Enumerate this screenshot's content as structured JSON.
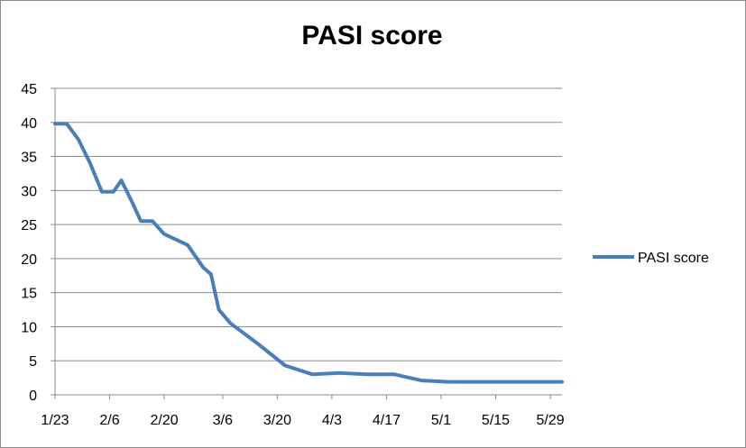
{
  "chart_data": {
    "type": "line",
    "title": "PASI score",
    "xlabel": "",
    "ylabel": "",
    "x_tick_labels": [
      "1/23",
      "2/6",
      "2/20",
      "3/6",
      "3/20",
      "4/3",
      "4/17",
      "5/1",
      "5/15",
      "5/29"
    ],
    "x_start": "1/23",
    "x_end": "6/1",
    "ylim": [
      0,
      45
    ],
    "y_ticks": [
      0,
      5,
      10,
      15,
      20,
      25,
      30,
      35,
      40,
      45
    ],
    "grid": true,
    "legend_position": "right",
    "series": [
      {
        "name": "PASI score",
        "color": "#4a7ebb",
        "x": [
          "1/23",
          "1/26",
          "1/29",
          "2/1",
          "2/4",
          "2/7",
          "2/9",
          "2/12",
          "2/14",
          "2/17",
          "2/20",
          "2/23",
          "2/26",
          "3/1",
          "3/3",
          "3/5",
          "3/8",
          "3/15",
          "3/22",
          "3/29",
          "4/5",
          "4/12",
          "4/19",
          "4/26",
          "5/3",
          "5/10",
          "5/17",
          "5/24",
          "6/1"
        ],
        "values": [
          39.8,
          39.8,
          37.5,
          34.0,
          29.8,
          29.8,
          31.5,
          28.0,
          25.5,
          25.5,
          23.6,
          22.8,
          22.0,
          18.7,
          17.7,
          12.5,
          10.5,
          7.5,
          4.3,
          3.0,
          3.2,
          3.0,
          3.0,
          2.1,
          1.9,
          1.9,
          1.9,
          1.9,
          1.9
        ]
      }
    ]
  }
}
